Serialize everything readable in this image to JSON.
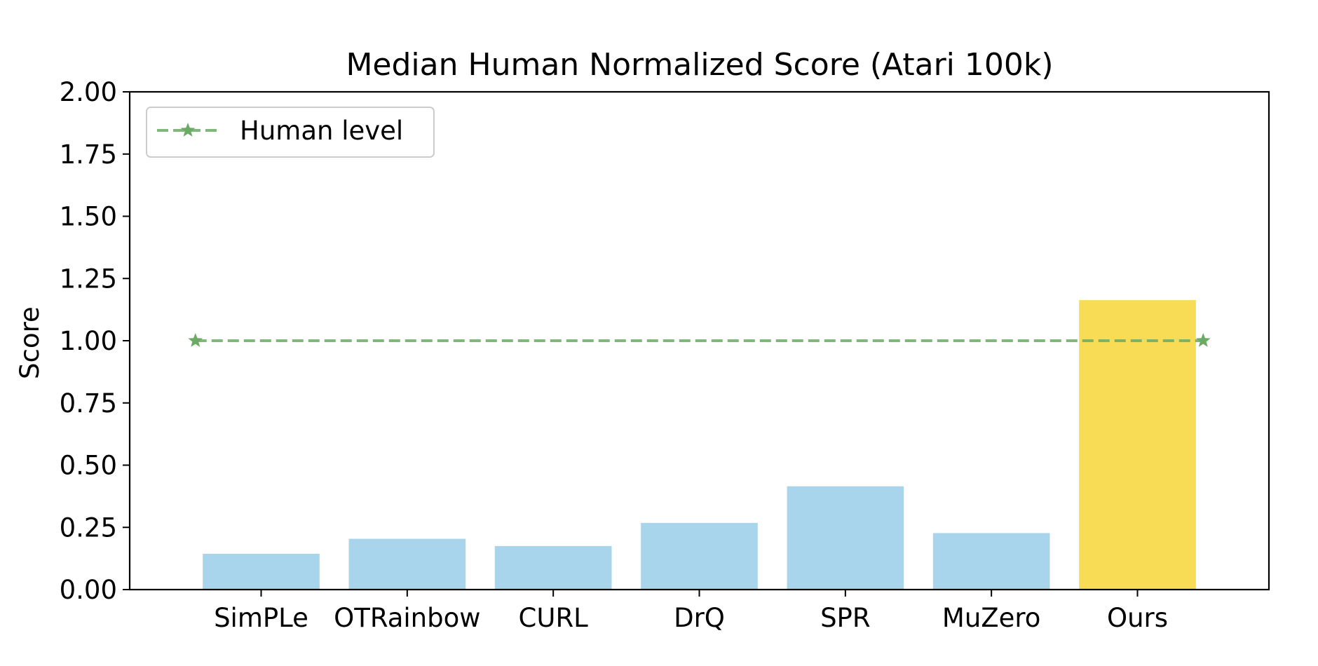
{
  "chart_data": {
    "type": "bar",
    "title": "Median Human Normalized Score (Atari 100k)",
    "xlabel": "",
    "ylabel": "Score",
    "categories": [
      "SimPLe",
      "OTRainbow",
      "CURL",
      "DrQ",
      "SPR",
      "MuZero",
      "Ours"
    ],
    "values": [
      0.144,
      0.204,
      0.175,
      0.268,
      0.415,
      0.227,
      1.163
    ],
    "bar_colors": [
      "#a8d5eb",
      "#a8d5eb",
      "#a8d5eb",
      "#a8d5eb",
      "#a8d5eb",
      "#a8d5eb",
      "#f8dc56"
    ],
    "ylim": [
      0,
      2
    ],
    "yticks": [
      0,
      0.25,
      0.5,
      0.75,
      1.0,
      1.25,
      1.5,
      1.75,
      2.0
    ],
    "ytick_labels": [
      "0.00",
      "0.25",
      "0.50",
      "0.75",
      "1.00",
      "1.25",
      "1.50",
      "1.75",
      "2.00"
    ],
    "grid": false,
    "reference_line": {
      "name": "Human level",
      "value": 1.0,
      "color": "#6aaa64",
      "style": "dashed",
      "marker": "star"
    },
    "legend": {
      "placement": "top-left",
      "entries": [
        "Human level"
      ]
    }
  }
}
